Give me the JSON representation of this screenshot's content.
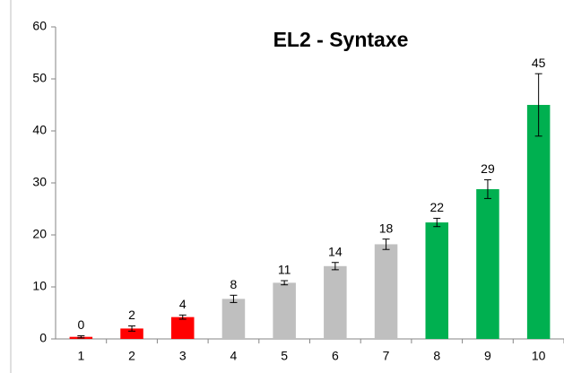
{
  "chart_data": {
    "type": "bar",
    "title": "EL2 - Syntaxe",
    "categories": [
      "1",
      "2",
      "3",
      "4",
      "5",
      "6",
      "7",
      "8",
      "9",
      "10"
    ],
    "values": [
      0.4,
      2.0,
      4.2,
      7.7,
      10.8,
      14.0,
      18.2,
      22.4,
      28.8,
      45.0
    ],
    "value_labels": [
      "0",
      "2",
      "4",
      "8",
      "11",
      "14",
      "18",
      "22",
      "29",
      "45"
    ],
    "errors": [
      0.2,
      0.5,
      0.4,
      0.7,
      0.4,
      0.7,
      1.0,
      0.8,
      1.8,
      6.0
    ],
    "colors": [
      "#ff0000",
      "#ff0000",
      "#ff0000",
      "#bfbfbf",
      "#bfbfbf",
      "#bfbfbf",
      "#bfbfbf",
      "#00b050",
      "#00b050",
      "#00b050"
    ],
    "ylim": [
      0,
      60
    ],
    "yticks": [
      0,
      10,
      20,
      30,
      40,
      50,
      60
    ],
    "grid": false
  }
}
